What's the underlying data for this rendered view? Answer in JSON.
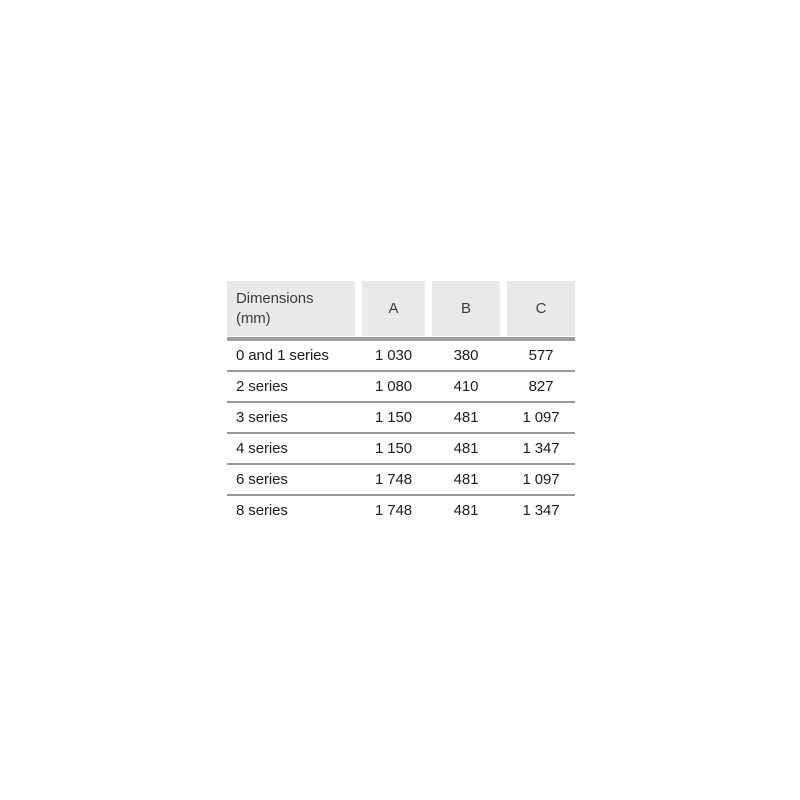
{
  "table": {
    "header": {
      "dimension_label": "Dimensions (mm)",
      "columns": [
        "A",
        "B",
        "C"
      ]
    },
    "rows": [
      {
        "label": "0 and 1 series",
        "a": "1 030",
        "b": "380",
        "c": "577"
      },
      {
        "label": "2 series",
        "a": "1 080",
        "b": "410",
        "c": "827"
      },
      {
        "label": "3 series",
        "a": "1 150",
        "b": "481",
        "c": "1 097"
      },
      {
        "label": "4 series",
        "a": "1 150",
        "b": "481",
        "c": "1 347"
      },
      {
        "label": "6 series",
        "a": "1 748",
        "b": "481",
        "c": "1 097"
      },
      {
        "label": "8 series",
        "a": "1 748",
        "b": "481",
        "c": "1 347"
      }
    ],
    "colors": {
      "header_bg": "#e9e9e9",
      "header_rule": "#9c9c9c",
      "row_rule": "#999999",
      "text": "#1d1d1b",
      "page_bg": "#ffffff"
    }
  },
  "chart_data": {
    "type": "table",
    "title": "Dimensions (mm)",
    "columns": [
      "Dimensions (mm)",
      "A",
      "B",
      "C"
    ],
    "rows": [
      [
        "0 and 1 series",
        "1 030",
        "380",
        "577"
      ],
      [
        "2 series",
        "1 080",
        "410",
        "827"
      ],
      [
        "3 series",
        "1 150",
        "481",
        "1 097"
      ],
      [
        "4 series",
        "1 150",
        "481",
        "1 347"
      ],
      [
        "6 series",
        "1 748",
        "481",
        "1 097"
      ],
      [
        "8 series",
        "1 748",
        "481",
        "1 347"
      ]
    ]
  }
}
